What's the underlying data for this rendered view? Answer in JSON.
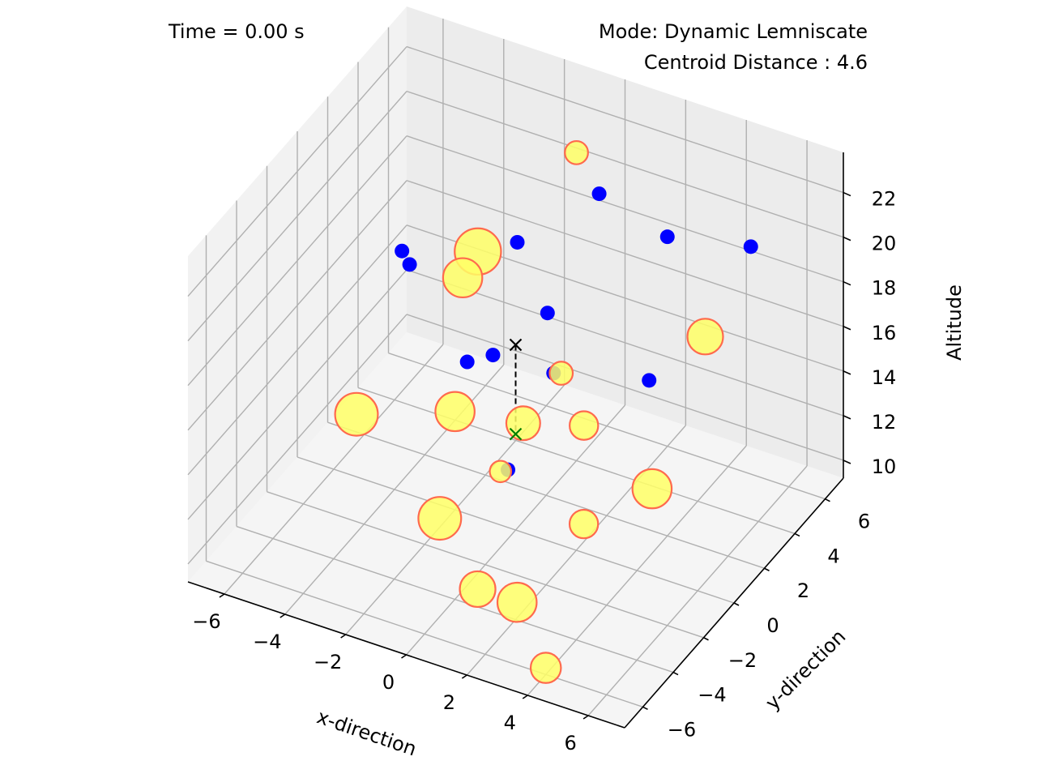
{
  "time_text": "Time = 0.00 s",
  "mode_text": "Mode: Dynamic Lemniscate",
  "centroid_text": "Centroid Distance : 4.6",
  "colors": {
    "pane_left": "#f2f2f2",
    "pane_right": "#ececec",
    "pane_floor": "#f5f5f5",
    "grid": "#b0b0b0",
    "blue_point": "#0000ff",
    "circle_fill": "#ffff66",
    "circle_edge": "#ff6a4d",
    "centroid_marker": "#000000",
    "ground_marker": "#008000"
  },
  "icons": {
    "centroid_marker": "x-marker",
    "ground_marker": "x-marker"
  },
  "chart_data": {
    "type": "scatter3d",
    "xlabel": "x-direction",
    "ylabel": "y-direction",
    "zlabel": "Altitude",
    "xlim": [
      -7.2,
      7.2
    ],
    "ylim": [
      -7.2,
      7.2
    ],
    "zlim": [
      9.2,
      23.8
    ],
    "grid": true,
    "xticks": [
      "−6",
      "−4",
      "−2",
      "0",
      "2",
      "4",
      "6"
    ],
    "yticks": [
      "−6",
      "−4",
      "−2",
      "0",
      "2",
      "4",
      "6"
    ],
    "zticks": [
      "10",
      "12",
      "14",
      "16",
      "18",
      "20",
      "22"
    ],
    "xtick_values": [
      -6,
      -4,
      -2,
      0,
      2,
      4,
      6
    ],
    "ytick_values": [
      -6,
      -4,
      -2,
      0,
      2,
      4,
      6
    ],
    "ztick_values": [
      10,
      12,
      14,
      16,
      18,
      20,
      22
    ],
    "series": [
      {
        "marker": "blue-dot",
        "points": [
          {
            "x": -5.0,
            "y": 3.0,
            "z": 16.5
          },
          {
            "x": -2.2,
            "y": 4.5,
            "z": 17.6
          },
          {
            "x": -2.6,
            "y": 2.0,
            "z": 14.0
          },
          {
            "x": 0.5,
            "y": 4.5,
            "z": 21.0
          },
          {
            "x": -1.0,
            "y": 0.5,
            "z": 16.2
          },
          {
            "x": 0.8,
            "y": 0.5,
            "z": 18.9
          },
          {
            "x": -4.0,
            "y": 0.5,
            "z": 19.5
          },
          {
            "x": 1.5,
            "y": -0.5,
            "z": 17.3
          },
          {
            "x": 3.5,
            "y": 3.0,
            "z": 21.6
          },
          {
            "x": 4.0,
            "y": 0.8,
            "z": 17.1
          },
          {
            "x": 1.5,
            "y": -3.5,
            "z": 15.3
          },
          {
            "x": 5.5,
            "y": 4.5,
            "z": 20.9
          }
        ]
      },
      {
        "marker": "yellow-circle",
        "points": [
          {
            "x": -5.5,
            "y": 0.5,
            "z": 11.5,
            "s": 1.2
          },
          {
            "x": -3.0,
            "y": 3.5,
            "z": 17.6,
            "s": 1.3
          },
          {
            "x": -3.0,
            "y": 2.5,
            "z": 17.2,
            "s": 1.1
          },
          {
            "x": -0.5,
            "y": 5.0,
            "z": 22.0,
            "s": 0.65
          },
          {
            "x": -2.0,
            "y": 0.0,
            "z": 13.6,
            "s": 1.1
          },
          {
            "x": 0.5,
            "y": -0.5,
            "z": 14.6,
            "s": 0.95
          },
          {
            "x": 0.5,
            "y": 2.0,
            "z": 14.9,
            "s": 0.65
          },
          {
            "x": 2.0,
            "y": 0.5,
            "z": 14.4,
            "s": 0.8
          },
          {
            "x": 5.5,
            "y": 1.5,
            "z": 19.2,
            "s": 1.0
          },
          {
            "x": 3.5,
            "y": -2.5,
            "z": 13.0,
            "s": 0.8
          },
          {
            "x": 5.5,
            "y": -2.0,
            "z": 15.1,
            "s": 1.1
          },
          {
            "x": -1.0,
            "y": -3.0,
            "z": 11.6,
            "s": 1.2
          },
          {
            "x": 1.0,
            "y": -4.5,
            "z": 10.5,
            "s": 1.0
          },
          {
            "x": 2.3,
            "y": -4.5,
            "z": 10.5,
            "s": 1.1
          },
          {
            "x": 0.0,
            "y": -1.0,
            "z": 12.6,
            "s": 0.6
          },
          {
            "x": 4.0,
            "y": -6.0,
            "z": 9.5,
            "s": 0.85
          }
        ]
      },
      {
        "marker": "centroid",
        "points": [
          {
            "x": 0.0,
            "y": 0.0,
            "z": 17.5
          }
        ]
      },
      {
        "marker": "ground-projection",
        "points": [
          {
            "x": 0.0,
            "y": 0.0,
            "z": 13.5
          }
        ]
      }
    ]
  }
}
